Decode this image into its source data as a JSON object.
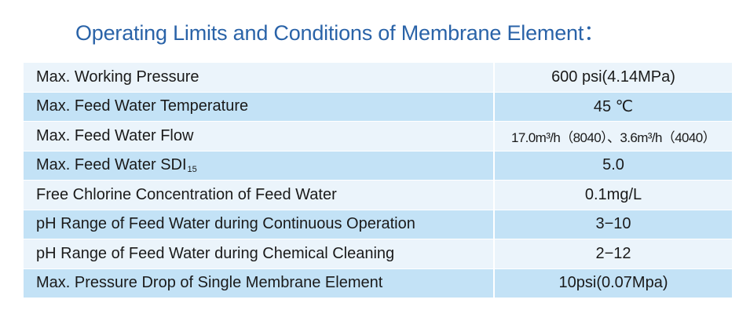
{
  "title": "Operating Limits and Conditions of Membrane Element：",
  "rows": [
    {
      "label": "Max. Working Pressure",
      "value": "600 psi(4.14MPa)"
    },
    {
      "label": "Max. Feed Water Temperature",
      "value": "45 ℃"
    },
    {
      "label": "Max. Feed Water Flow",
      "value": "17.0m³/h（8040）、3.6m³/h（4040）"
    },
    {
      "label": "Max. Feed Water SDI",
      "label_sub": "15",
      "value": "5.0"
    },
    {
      "label": "Free Chlorine Concentration of Feed Water",
      "value": "0.1mg/L"
    },
    {
      "label": "pH Range of Feed Water during Continuous Operation",
      "value": "3−10"
    },
    {
      "label": "pH Range of Feed Water during Chemical Cleaning",
      "value": "2−12"
    },
    {
      "label": "Max. Pressure Drop of Single Membrane Element",
      "value": "10psi(0.07Mpa)"
    }
  ]
}
